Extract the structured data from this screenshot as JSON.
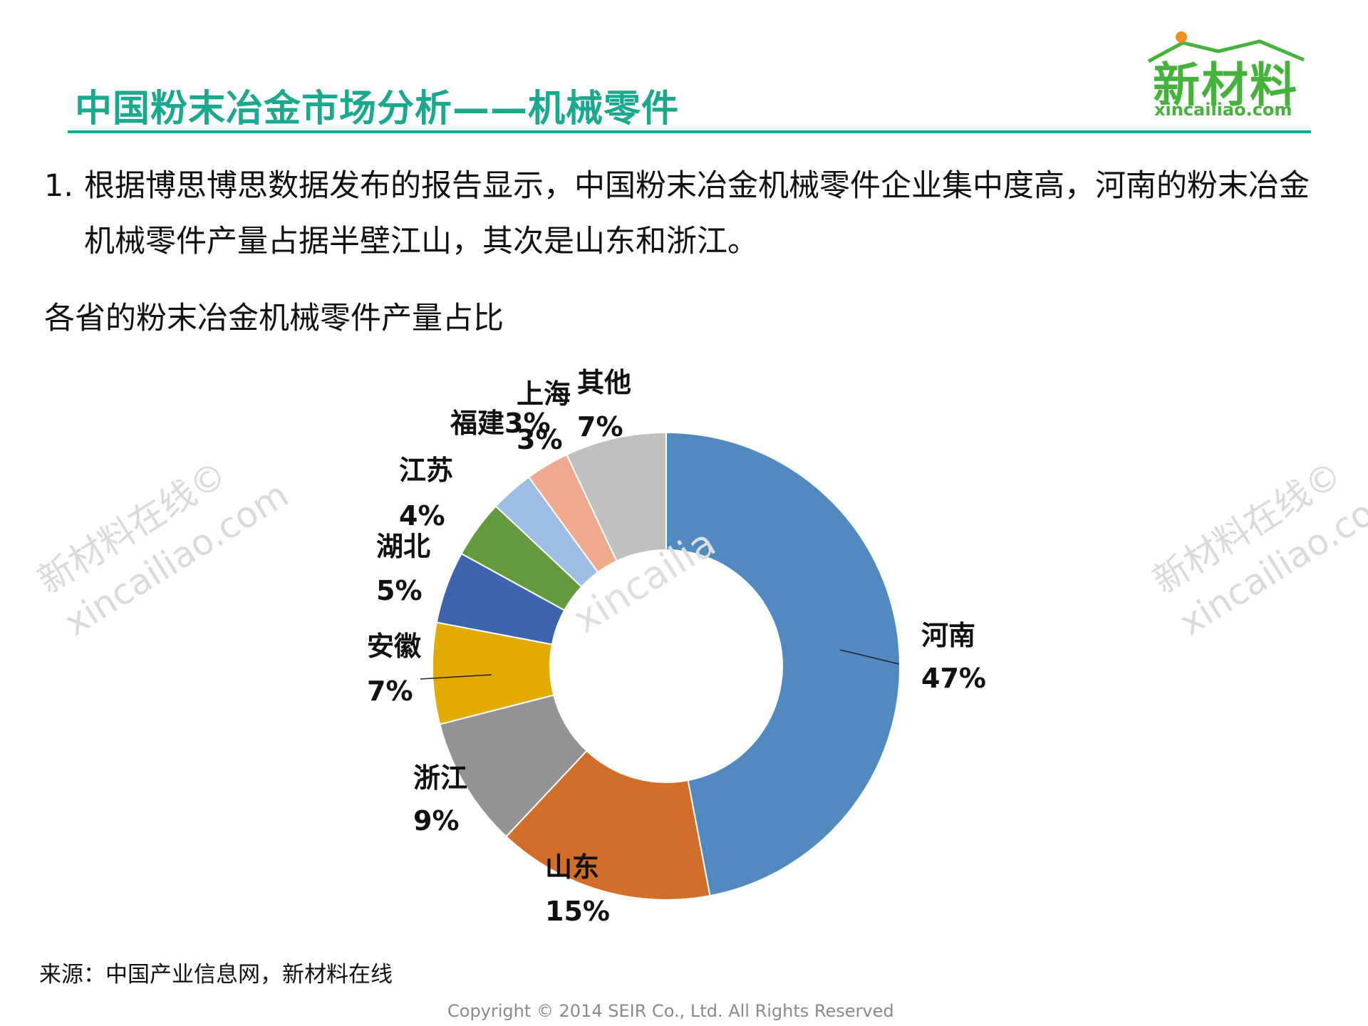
{
  "header": {
    "title": "中国粉末冶金市场分析——机械零件",
    "logo_text": "新材料",
    "logo_url": "xincailiao.com"
  },
  "paragraph": {
    "number": "1.",
    "text": "根据博思博思数据发布的报告显示，中国粉末冶金机械零件企业集中度高，河南的粉末冶金机械零件产量占据半壁江山，其次是山东和浙江。"
  },
  "chart_caption": "各省的粉末冶金机械零件产量占比",
  "chart_data": {
    "type": "pie",
    "donut": true,
    "title": "",
    "start": "12 o'clock, clockwise",
    "slices": [
      {
        "label": "河南",
        "value": 47,
        "value_label": "47%",
        "color": "#518ac0"
      },
      {
        "label": "山东",
        "value": 15,
        "value_label": "15%",
        "color": "#d26e2a"
      },
      {
        "label": "浙江",
        "value": 9,
        "value_label": "9%",
        "color": "#939393"
      },
      {
        "label": "安徽",
        "value": 7,
        "value_label": "7%",
        "color": "#e3aa00"
      },
      {
        "label": "湖北",
        "value": 5,
        "value_label": "5%",
        "color": "#3e64ae"
      },
      {
        "label": "江苏",
        "value": 4,
        "value_label": "4%",
        "color": "#64993c"
      },
      {
        "label": "福建",
        "value": 3,
        "value_label": "3%",
        "color": "#9dbde2"
      },
      {
        "label": "上海",
        "value": 3,
        "value_label": "3%",
        "color": "#efa98c"
      },
      {
        "label": "其他",
        "value": 7,
        "value_label": "7%",
        "color": "#c0c0c0"
      }
    ]
  },
  "footer": {
    "source": "来源：中国产业信息网，新材料在线",
    "copyright": "Copyright © 2014  SEIR Co., Ltd. All Rights Reserved"
  },
  "watermark": {
    "line1": "新材料在线©",
    "line2": "xincailiao.com",
    "center": "xincailia"
  },
  "colors": {
    "title_green": "#1aa98e",
    "logo_green": "#45b23c",
    "logo_sun": "#f28c1e"
  }
}
